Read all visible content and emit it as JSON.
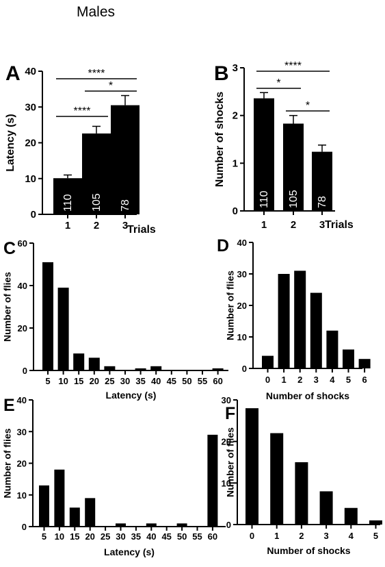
{
  "title": "Males",
  "chart_data": [
    {
      "panel": "A",
      "type": "bar",
      "categories": [
        "1",
        "2",
        "3"
      ],
      "values": [
        10.1,
        22.6,
        30.5
      ],
      "errors": [
        0.9,
        2.0,
        2.7
      ],
      "bar_labels": [
        "110",
        "105",
        "78"
      ],
      "xlabel": "Trials",
      "ylabel": "Latency (s)",
      "ylim": [
        0,
        40
      ],
      "yticks": [
        0,
        10,
        20,
        30,
        40
      ],
      "significance": [
        {
          "from": "1",
          "to": "2",
          "label": "****"
        },
        {
          "from": "2",
          "to": "3",
          "label": "*"
        },
        {
          "from": "1",
          "to": "3",
          "label": "****"
        }
      ]
    },
    {
      "panel": "B",
      "type": "bar",
      "categories": [
        "1",
        "2",
        "3"
      ],
      "values": [
        2.36,
        1.83,
        1.24
      ],
      "errors": [
        0.12,
        0.17,
        0.14
      ],
      "bar_labels": [
        "110",
        "105",
        "78"
      ],
      "xlabel": "Trials",
      "ylabel": "Number of shocks",
      "ylim": [
        0,
        3
      ],
      "yticks": [
        0,
        1,
        2,
        3
      ],
      "significance": [
        {
          "from": "1",
          "to": "2",
          "label": "*"
        },
        {
          "from": "2",
          "to": "3",
          "label": "*"
        },
        {
          "from": "1",
          "to": "3",
          "label": "****"
        }
      ]
    },
    {
      "panel": "C",
      "type": "bar",
      "categories": [
        "5",
        "10",
        "15",
        "20",
        "25",
        "30",
        "35",
        "40",
        "45",
        "50",
        "55",
        "60"
      ],
      "values": [
        51,
        39,
        8,
        6,
        2,
        0,
        1,
        2,
        0,
        0,
        0,
        1
      ],
      "xlabel": "Latency (s)",
      "ylabel": "Number of flies",
      "ylim": [
        0,
        60
      ],
      "yticks": [
        0,
        20,
        40,
        60
      ]
    },
    {
      "panel": "D",
      "type": "bar",
      "categories": [
        "0",
        "1",
        "2",
        "3",
        "4",
        "5",
        "6"
      ],
      "values": [
        4,
        30,
        31,
        24,
        12,
        6,
        3
      ],
      "xlabel": "Number of shocks",
      "ylabel": "Number of flies",
      "ylim": [
        0,
        40
      ],
      "yticks": [
        0,
        10,
        20,
        30,
        40
      ]
    },
    {
      "panel": "E",
      "type": "bar",
      "categories": [
        "5",
        "10",
        "15",
        "20",
        "25",
        "30",
        "35",
        "40",
        "45",
        "50",
        "55",
        "60"
      ],
      "values": [
        13,
        18,
        6,
        9,
        0,
        1,
        0,
        1,
        0,
        1,
        0,
        29
      ],
      "xlabel": "Latency (s)",
      "ylabel": "Number of flies",
      "ylim": [
        0,
        40
      ],
      "yticks": [
        0,
        10,
        20,
        30,
        40
      ]
    },
    {
      "panel": "F",
      "type": "bar",
      "categories": [
        "0",
        "1",
        "2",
        "3",
        "4",
        "5"
      ],
      "values": [
        28,
        22,
        15,
        8,
        4,
        1
      ],
      "xlabel": "Number of shocks",
      "ylabel": "Number of flies",
      "ylim": [
        0,
        30
      ],
      "yticks": [
        0,
        10,
        20,
        30
      ]
    }
  ]
}
